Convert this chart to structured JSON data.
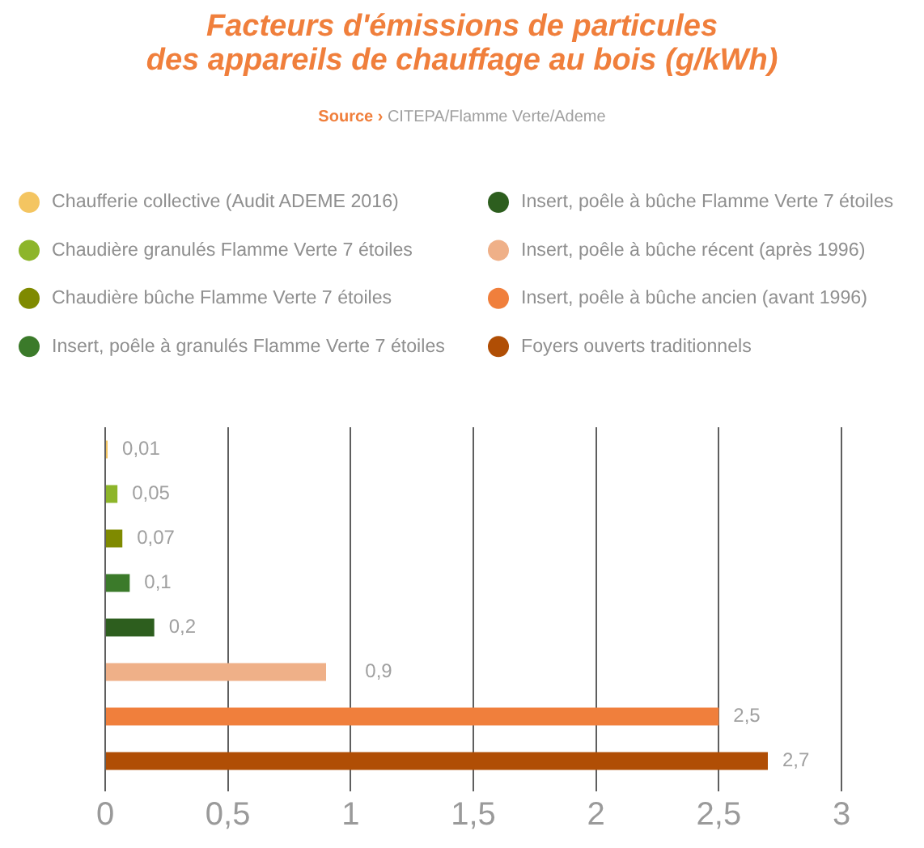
{
  "chart_data": {
    "type": "bar",
    "orientation": "horizontal",
    "title": "Facteurs d'émissions de particules\ndes appareils de chauffage au bois (g/kWh)",
    "annotations": [
      "Source › CITEPA/Flamme Verte/Ademe"
    ],
    "categories": [
      null,
      null,
      null,
      null,
      null,
      null,
      null,
      null
    ],
    "series": [
      {
        "name": "Chaufferie collective (Audit ADEME 2016)",
        "color": "#f4c561",
        "values": [
          0.01,
          null,
          null,
          null,
          null,
          null,
          null,
          null
        ],
        "value_labels": [
          "0,01",
          null,
          null,
          null,
          null,
          null,
          null,
          null
        ]
      },
      {
        "name": "Chaudière granulés Flamme Verte 7 étoiles",
        "color": "#8db52a",
        "values": [
          null,
          0.05,
          null,
          null,
          null,
          null,
          null,
          null
        ],
        "value_labels": [
          null,
          "0,05",
          null,
          null,
          null,
          null,
          null,
          null
        ]
      },
      {
        "name": "Chaudière bûche Flamme Verte 7 étoiles",
        "color": "#7f8a00",
        "values": [
          null,
          null,
          0.07,
          null,
          null,
          null,
          null,
          null
        ],
        "value_labels": [
          null,
          null,
          "0,07",
          null,
          null,
          null,
          null,
          null
        ]
      },
      {
        "name": "Insert, poêle à granulés Flamme Verte 7 étoiles",
        "color": "#3b7a2a",
        "values": [
          null,
          null,
          null,
          0.1,
          null,
          null,
          null,
          null
        ],
        "value_labels": [
          null,
          null,
          null,
          "0,1",
          null,
          null,
          null,
          null
        ]
      },
      {
        "name": "Insert, poêle à bûche Flamme Verte 7 étoiles",
        "color": "#2d5e1e",
        "values": [
          null,
          null,
          null,
          null,
          0.2,
          null,
          null,
          null
        ],
        "value_labels": [
          null,
          null,
          null,
          null,
          "0,2",
          null,
          null,
          null
        ]
      },
      {
        "name": "Insert, poêle à bûche récent (après 1996)",
        "color": "#efb088",
        "values": [
          null,
          null,
          null,
          null,
          null,
          0.9,
          null,
          null
        ],
        "value_labels": [
          null,
          null,
          null,
          null,
          null,
          "0,9",
          null,
          null
        ]
      },
      {
        "name": "Insert, poêle à bûche ancien (avant 1996)",
        "color": "#f07f3c",
        "values": [
          null,
          null,
          null,
          null,
          null,
          null,
          2.5,
          null
        ],
        "value_labels": [
          null,
          null,
          null,
          null,
          null,
          null,
          "2,5",
          null
        ]
      },
      {
        "name": "Foyers ouverts traditionnels",
        "color": "#b04e05",
        "values": [
          null,
          null,
          null,
          null,
          null,
          null,
          null,
          2.7
        ],
        "value_labels": [
          null,
          null,
          null,
          null,
          null,
          null,
          null,
          "2,7"
        ]
      }
    ],
    "xlim": [
      0,
      3
    ],
    "xticks": [
      0,
      {
        "value": 0.5,
        "label": "0,5"
      },
      1,
      {
        "value": 1.5,
        "label": "1,5"
      },
      2,
      {
        "value": 2.5,
        "label": "2,5"
      },
      3
    ],
    "grid": "x",
    "legend": "top",
    "tick_labels": "x"
  }
}
